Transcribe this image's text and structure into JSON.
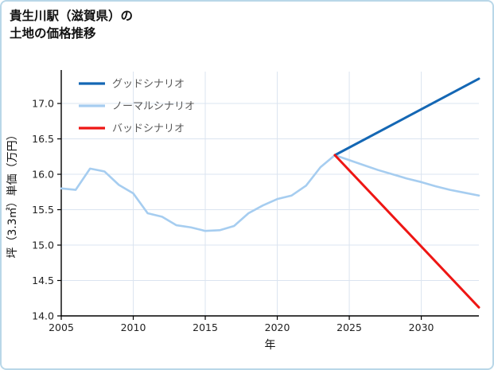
{
  "header": {
    "title_line1": "貴生川駅（滋賀県）の",
    "title_line2": "土地の価格推移"
  },
  "colors": {
    "page_border": "#b9d7e8",
    "axis": "#000000",
    "grid": "#dbe4f0",
    "tick_text": "#222222",
    "axis_title_text": "#111111",
    "legend_text": "#595959"
  },
  "chart_data": {
    "type": "line",
    "title": "貴生川駅（滋賀県）の土地の価格推移",
    "xlabel": "年",
    "ylabel": "坪（3.3㎡）単価（万円）",
    "xlim": [
      2005,
      2034
    ],
    "ylim": [
      14.0,
      17.45
    ],
    "xticks": [
      2005,
      2010,
      2015,
      2020,
      2025,
      2030
    ],
    "yticks": [
      14.0,
      14.5,
      15.0,
      15.5,
      16.0,
      16.5,
      17.0
    ],
    "grid": true,
    "legend_position": "upper-left",
    "series": [
      {
        "name": "グッドシナリオ",
        "color": "#1467b4",
        "width": 3,
        "z": 1,
        "x": [
          2024,
          2034
        ],
        "y": [
          16.27,
          17.35
        ]
      },
      {
        "name": "ノーマルシナリオ",
        "color": "#a6cdf0",
        "width": 2.6,
        "z": 0,
        "x": [
          2005,
          2006,
          2007,
          2008,
          2009,
          2010,
          2011,
          2012,
          2013,
          2014,
          2015,
          2016,
          2017,
          2018,
          2019,
          2020,
          2021,
          2022,
          2023,
          2024,
          2025,
          2026,
          2027,
          2028,
          2029,
          2030,
          2031,
          2032,
          2033,
          2034
        ],
        "y": [
          15.8,
          15.78,
          16.08,
          16.04,
          15.85,
          15.73,
          15.45,
          15.4,
          15.28,
          15.25,
          15.2,
          15.21,
          15.27,
          15.45,
          15.56,
          15.65,
          15.7,
          15.84,
          16.1,
          16.27,
          16.2,
          16.13,
          16.06,
          16.0,
          15.94,
          15.89,
          15.83,
          15.78,
          15.74,
          15.7
        ]
      },
      {
        "name": "バッドシナリオ",
        "color": "#ee1614",
        "width": 3,
        "z": 2,
        "x": [
          2024,
          2034
        ],
        "y": [
          16.27,
          14.12
        ]
      }
    ]
  }
}
